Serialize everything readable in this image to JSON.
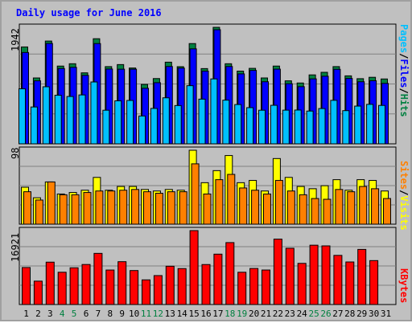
{
  "title": "Daily usage for June 2016",
  "colors": {
    "background": "#c0c0c0",
    "panel": "#c0c0c0",
    "hits": "#008040",
    "files": "#0000ff",
    "pages": "#00c0ff",
    "visits": "#ffff00",
    "sites": "#ff8000",
    "kbytes": "#ff0000",
    "weekend": "#008040"
  },
  "legend": {
    "top": {
      "pages": "Pages",
      "files": "Files",
      "hits": "Hits",
      "sep": "/"
    },
    "mid": {
      "sites": "Sites",
      "visits": "Visits",
      "sep": "/"
    },
    "bottom": {
      "kbytes": "KBytes"
    }
  },
  "chart_data": {
    "type": "bar",
    "title": "Daily usage for June 2016",
    "x": [
      1,
      2,
      3,
      4,
      5,
      6,
      7,
      8,
      9,
      10,
      11,
      12,
      13,
      14,
      15,
      16,
      17,
      18,
      19,
      20,
      21,
      22,
      23,
      24,
      25,
      26,
      27,
      28,
      29,
      30,
      31
    ],
    "weekend_days": [
      4,
      5,
      11,
      12,
      18,
      19,
      25,
      26
    ],
    "panels": [
      {
        "name": "hits-files-pages",
        "ymax_label": "1942",
        "ymax": 1942,
        "series": [
          {
            "name": "Hits",
            "values": [
              1615,
              1098,
              1713,
              1296,
              1335,
              1183,
              1752,
              1287,
              1321,
              1264,
              990,
              1088,
              1361,
              1286,
              1671,
              1254,
              1942,
              1335,
              1212,
              1258,
              1098,
              1296,
              1050,
              1014,
              1149,
              1192,
              1287,
              1133,
              1086,
              1109,
              1081
            ]
          },
          {
            "name": "Files",
            "values": [
              1522,
              1050,
              1673,
              1255,
              1275,
              1141,
              1671,
              1247,
              1244,
              1244,
              926,
              1019,
              1289,
              1262,
              1583,
              1212,
              1902,
              1289,
              1166,
              1224,
              1035,
              1245,
              1002,
              953,
              1083,
              1127,
              1242,
              1090,
              1035,
              1052,
              1007
            ]
          },
          {
            "name": "Pages",
            "values": [
              917,
              614,
              951,
              810,
              789,
              815,
              1031,
              560,
              717,
              723,
              464,
              590,
              767,
              638,
              969,
              745,
              1082,
              728,
              655,
              603,
              560,
              642,
              561,
              563,
              546,
              588,
              725,
              553,
              629,
              658,
              640
            ]
          }
        ]
      },
      {
        "name": "visits-sites",
        "ymax_label": "98",
        "ymax": 98,
        "series": [
          {
            "name": "Visits",
            "values": [
              49,
              35,
              56,
              40,
              42,
              45,
              62,
              45,
              50,
              50,
              46,
              44,
              46,
              45,
              98,
              55,
              71,
              91,
              55,
              58,
              44,
              87,
              62,
              50,
              47,
              51,
              59,
              45,
              59,
              58,
              44
            ]
          },
          {
            "name": "Sites",
            "values": [
              43,
              32,
              56,
              39,
              39,
              42,
              44,
              44,
              45,
              46,
              43,
              41,
              43,
              43,
              80,
              40,
              59,
              66,
              48,
              45,
              40,
              58,
              44,
              39,
              34,
              33,
              46,
              43,
              50,
              47,
              34
            ]
          }
        ]
      },
      {
        "name": "kbytes",
        "ymax_label": "16921",
        "ymax": 16921,
        "series": [
          {
            "name": "KBytes",
            "values": [
              8470,
              5355,
              9700,
              7389,
              8409,
              9163,
              11709,
              7897,
              9807,
              7779,
              5646,
              6625,
              8767,
              8229,
              16921,
              9153,
              11532,
              14178,
              7389,
              8253,
              7901,
              14969,
              12881,
              9421,
              13582,
              13425,
              11252,
              9743,
              12617,
              10057,
              0
            ]
          }
        ]
      }
    ]
  }
}
